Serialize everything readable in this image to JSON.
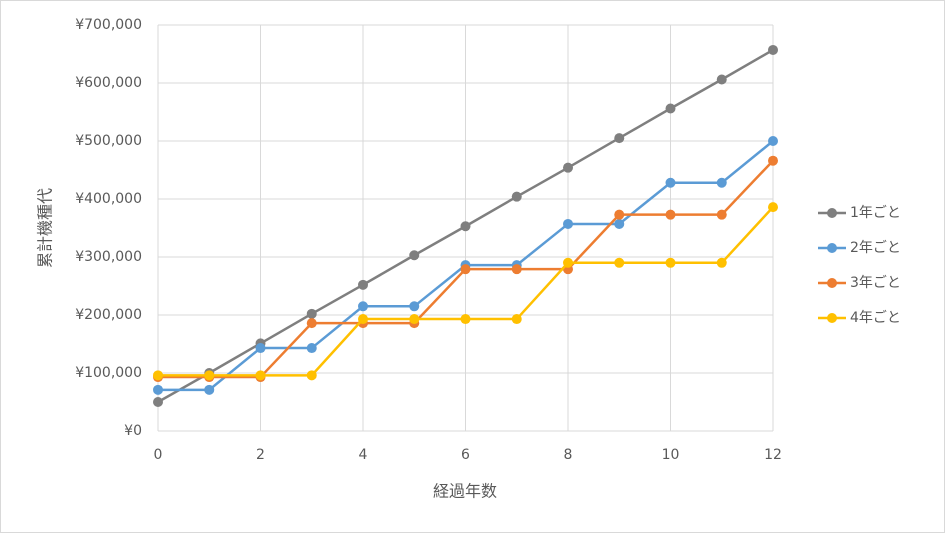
{
  "chart_data": {
    "type": "line",
    "x_label": "経過年数",
    "y_label": "累計機種代",
    "x": [
      0,
      1,
      2,
      3,
      4,
      5,
      6,
      7,
      8,
      9,
      10,
      11,
      12
    ],
    "xlim": [
      0,
      12
    ],
    "xticks": [
      0,
      2,
      4,
      6,
      8,
      10,
      12
    ],
    "ylim": [
      0,
      700000
    ],
    "yticks": [
      {
        "value": 0,
        "label": "¥0"
      },
      {
        "value": 100000,
        "label": "¥100,000"
      },
      {
        "value": 200000,
        "label": "¥200,000"
      },
      {
        "value": 300000,
        "label": "¥300,000"
      },
      {
        "value": 400000,
        "label": "¥400,000"
      },
      {
        "value": 500000,
        "label": "¥500,000"
      },
      {
        "value": 600000,
        "label": "¥600,000"
      },
      {
        "value": 700000,
        "label": "¥700,000"
      }
    ],
    "grid": true,
    "legend": "right",
    "series": [
      {
        "name": "1年ごと",
        "color": "#7f7f7f",
        "values": [
          50000,
          100000,
          151000,
          202000,
          252000,
          303000,
          353000,
          404000,
          454000,
          505000,
          556000,
          606000,
          657000
        ]
      },
      {
        "name": "2年ごと",
        "color": "#5b9bd5",
        "values": [
          71000,
          71000,
          143000,
          143000,
          215000,
          215000,
          286000,
          286000,
          357000,
          357000,
          428000,
          428000,
          500000
        ]
      },
      {
        "name": "3年ごと",
        "color": "#ed7d31",
        "values": [
          93000,
          93000,
          93000,
          186000,
          186000,
          186000,
          279000,
          279000,
          279000,
          373000,
          373000,
          373000,
          466000
        ]
      },
      {
        "name": "4年ごと",
        "color": "#ffc000",
        "values": [
          96000,
          96000,
          96000,
          96000,
          193000,
          193000,
          193000,
          193000,
          290000,
          290000,
          290000,
          290000,
          386000
        ]
      }
    ]
  }
}
